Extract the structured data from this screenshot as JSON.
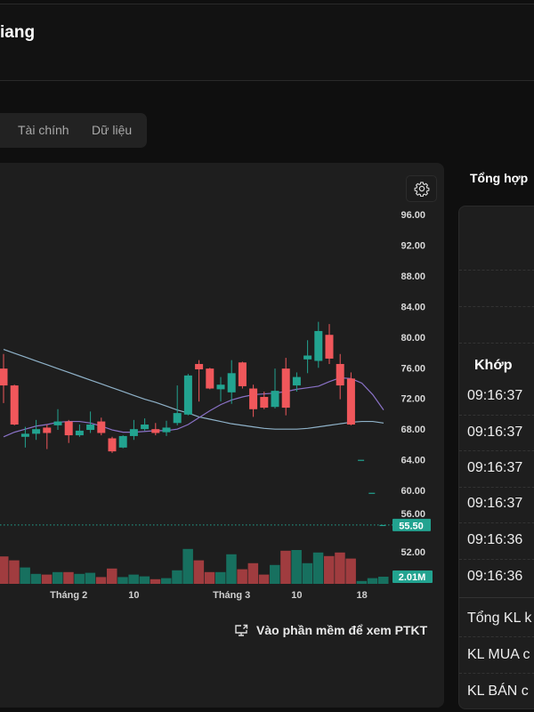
{
  "header": {
    "title": "iang"
  },
  "tabs": [
    {
      "label": "Tài chính"
    },
    {
      "label": "Dữ liệu"
    }
  ],
  "chart_toolbar": {
    "settings_icon": "gear-icon"
  },
  "link": {
    "label": "Vào phần mềm để xem PTKT",
    "icon": "external-monitor-icon"
  },
  "summary": {
    "title": "Tổng hợp",
    "match_header": "Khớp",
    "match_times": [
      "09:16:37",
      "09:16:37",
      "09:16:37",
      "09:16:37",
      "09:16:36",
      "09:16:36"
    ],
    "totals": [
      "Tổng KL k",
      "KL MUA c",
      "KL BÁN c"
    ]
  },
  "colors": {
    "up": "#22a390",
    "down": "#f0575b",
    "up_volume": "#17705f",
    "down_volume": "#a03c3f",
    "ma_slow": "#8fb2c9",
    "ma_fast": "#8a72c7"
  },
  "chart_data": {
    "type": "candlestick",
    "y_ticks": [
      "96.00",
      "92.00",
      "88.00",
      "84.00",
      "80.00",
      "76.00",
      "72.00",
      "68.00",
      "64.00",
      "60.00",
      "56.00",
      "52.00"
    ],
    "ylim": [
      52,
      96
    ],
    "last_price": {
      "value": 55.5,
      "label": "55.50"
    },
    "last_volume_label": "2.01M",
    "x_ticks": [
      {
        "index": 6,
        "label": "Tháng 2"
      },
      {
        "index": 12,
        "label": "10"
      },
      {
        "index": 21,
        "label": "Tháng 3"
      },
      {
        "index": 27,
        "label": "10"
      },
      {
        "index": 33,
        "label": "18"
      }
    ],
    "ohlc": [
      [
        75.9,
        77.8,
        71.4,
        73.7
      ],
      [
        73.7,
        73.8,
        68.5,
        68.6
      ],
      [
        67.0,
        68.3,
        65.6,
        67.4
      ],
      [
        67.4,
        69.2,
        66.6,
        68.0
      ],
      [
        68.2,
        68.6,
        65.4,
        67.5
      ],
      [
        68.5,
        70.6,
        67.9,
        69.0
      ],
      [
        69.0,
        69.2,
        66.2,
        67.2
      ],
      [
        67.2,
        68.6,
        67.0,
        67.8
      ],
      [
        67.9,
        70.3,
        67.5,
        68.6
      ],
      [
        69.0,
        69.5,
        67.2,
        67.5
      ],
      [
        66.8,
        67.0,
        64.9,
        65.1
      ],
      [
        65.6,
        67.2,
        65.5,
        67.1
      ],
      [
        67.1,
        69.2,
        66.6,
        68.0
      ],
      [
        68.0,
        69.4,
        67.8,
        68.6
      ],
      [
        68.0,
        68.8,
        67.2,
        67.5
      ],
      [
        67.6,
        69.1,
        67.1,
        68.2
      ],
      [
        68.8,
        73.7,
        68.5,
        70.1
      ],
      [
        69.9,
        75.2,
        69.8,
        75.0
      ],
      [
        76.5,
        77.0,
        71.6,
        75.8
      ],
      [
        75.9,
        76.0,
        73.2,
        73.3
      ],
      [
        73.2,
        74.8,
        71.6,
        73.8
      ],
      [
        72.8,
        77.0,
        71.3,
        75.3
      ],
      [
        76.7,
        76.8,
        73.3,
        73.6
      ],
      [
        73.3,
        73.8,
        69.6,
        70.6
      ],
      [
        72.2,
        72.9,
        70.6,
        70.8
      ],
      [
        70.9,
        75.9,
        70.7,
        73.0
      ],
      [
        75.9,
        77.3,
        69.8,
        70.8
      ],
      [
        73.7,
        75.4,
        72.9,
        74.8
      ],
      [
        77.1,
        79.6,
        75.3,
        77.6
      ],
      [
        76.9,
        82.0,
        76.0,
        80.8
      ],
      [
        80.3,
        81.7,
        76.5,
        77.2
      ],
      [
        76.5,
        77.8,
        71.9,
        73.7
      ],
      [
        74.6,
        75.4,
        68.5,
        68.6
      ],
      [
        63.9,
        64.0,
        63.9,
        64.0
      ],
      [
        59.6,
        59.7,
        59.6,
        59.7
      ],
      [
        55.5,
        55.5,
        55.5,
        55.5
      ]
    ],
    "volume_millions": [
      7.7,
      6.6,
      4.6,
      2.8,
      2.6,
      3.3,
      3.3,
      2.8,
      3.1,
      1.9,
      4.3,
      1.9,
      2.6,
      2.1,
      1.3,
      1.6,
      3.8,
      9.8,
      6.6,
      3.3,
      3.3,
      8.3,
      4.1,
      5.8,
      2.6,
      5.3,
      9.3,
      9.5,
      5.8,
      8.8,
      7.8,
      8.8,
      7.1,
      0.8,
      1.6,
      2.01
    ],
    "ma_slow": [
      78.4,
      77.9,
      77.4,
      76.9,
      76.4,
      75.9,
      75.4,
      74.9,
      74.4,
      73.9,
      73.4,
      72.9,
      72.4,
      71.9,
      71.5,
      71.0,
      70.5,
      70.1,
      69.6,
      69.3,
      69.0,
      68.7,
      68.5,
      68.3,
      68.1,
      68.0,
      68.0,
      68.0,
      68.1,
      68.3,
      68.5,
      68.7,
      68.9,
      69.0,
      69.0,
      68.8
    ],
    "ma_fast": [
      67.0,
      67.6,
      68.0,
      68.4,
      68.6,
      68.9,
      69.0,
      69.0,
      68.8,
      68.4,
      67.9,
      67.6,
      67.6,
      67.7,
      67.8,
      67.8,
      68.0,
      68.6,
      69.5,
      70.4,
      71.2,
      71.8,
      72.2,
      72.5,
      72.6,
      72.7,
      72.9,
      73.2,
      73.4,
      73.6,
      74.2,
      74.7,
      74.6,
      74.0,
      72.5,
      70.5
    ]
  }
}
